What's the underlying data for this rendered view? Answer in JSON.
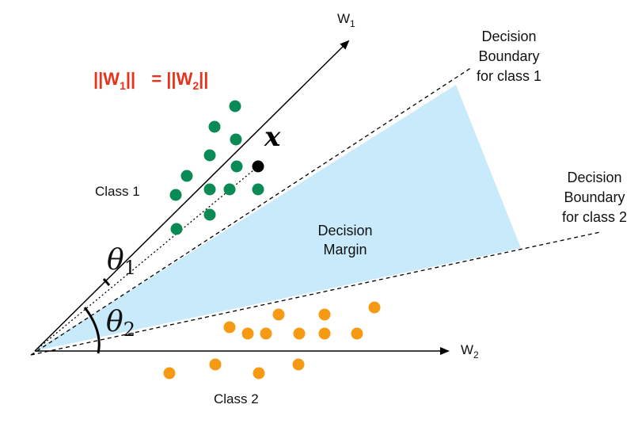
{
  "labels": {
    "w1": "W",
    "w1_sub": "1",
    "w2": "W",
    "w2_sub": "2",
    "x_point": "x",
    "theta1": "θ",
    "theta1_sub": "1",
    "theta2": "θ",
    "theta2_sub": "2",
    "class1": "Class 1",
    "class2": "Class 2",
    "decision_margin_line1": "Decision",
    "decision_margin_line2": "Margin",
    "boundary1_line1": "Decision",
    "boundary1_line2": "Boundary",
    "boundary1_line3": "for class 1",
    "boundary2_line1": "Decision",
    "boundary2_line2": "Boundary",
    "boundary2_line3": "for class 2",
    "eq_left": "||W",
    "eq_left_sub": "1",
    "eq_left_close": "||",
    "eq_mid": "= ||W",
    "eq_right_sub": "2",
    "eq_right_close": "||"
  },
  "colors": {
    "class1": "#0a8a55",
    "class2": "#f59a12",
    "margin_fill": "#c8eafb",
    "equation": "#e8321e",
    "point_x": "#000000"
  }
}
